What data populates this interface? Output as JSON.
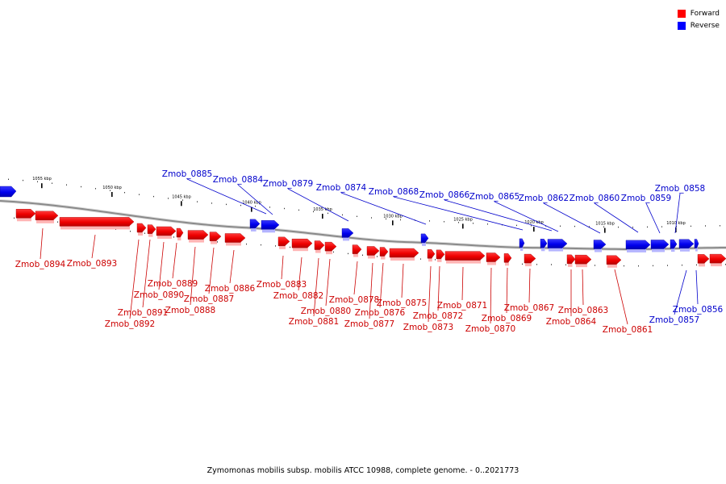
{
  "legend": {
    "forward": {
      "label": "Forward",
      "color": "#ff0000"
    },
    "reverse": {
      "label": "Reverse",
      "color": "#0000ff"
    }
  },
  "caption": "Zymomonas mobilis subsp. mobilis ATCC 10988, complete genome. - 0..2021773",
  "scale_labels": [
    "1055 kbp",
    "1050 kbp",
    "1045 kbp",
    "1040 kbp",
    "1035 kbp",
    "1030 kbp",
    "1025 kbp",
    "1020 kbp",
    "1015 kbp",
    "1010 kbp"
  ],
  "reverse_genes": [
    "Zmob_0885",
    "Zmob_0884",
    "Zmob_0879",
    "Zmob_0874",
    "Zmob_0868",
    "Zmob_0866",
    "Zmob_0865",
    "Zmob_0862",
    "Zmob_0860",
    "Zmob_0859",
    "Zmob_0858",
    "Zmob_0856",
    "Zmob_0857"
  ],
  "forward_genes": [
    "Zmob_0894",
    "Zmob_0893",
    "Zmob_0892",
    "Zmob_0891",
    "Zmob_0890",
    "Zmob_0889",
    "Zmob_0888",
    "Zmob_0887",
    "Zmob_0886",
    "Zmob_0883",
    "Zmob_0882",
    "Zmob_0881",
    "Zmob_0880",
    "Zmob_0878",
    "Zmob_0877",
    "Zmob_0876",
    "Zmob_0875",
    "Zmob_0873",
    "Zmob_0872",
    "Zmob_0871",
    "Zmob_0870",
    "Zmob_0869",
    "Zmob_0867",
    "Zmob_0864",
    "Zmob_0863",
    "Zmob_0861"
  ]
}
